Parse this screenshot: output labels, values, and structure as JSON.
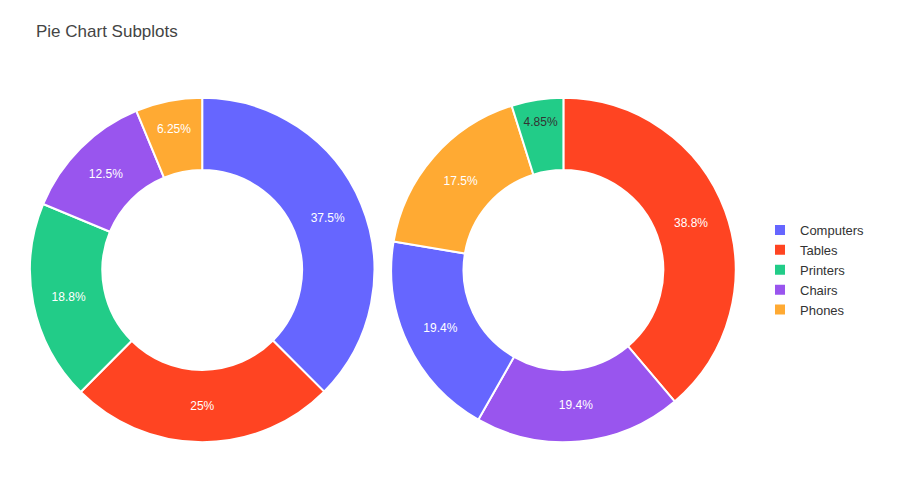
{
  "chart_data": [
    {
      "type": "pie",
      "title": "Pie Chart Subplots",
      "legend": "right",
      "categories": [
        "Computers",
        "Tables",
        "Printers",
        "Chairs",
        "Phones"
      ],
      "values": [
        37.5,
        25.0,
        18.8,
        12.5,
        6.25
      ],
      "value_labels": [
        "37.5%",
        "25%",
        "18.8%",
        "12.5%",
        "6.25%"
      ],
      "colors": [
        "#6666ff",
        "#ff4422",
        "#22cc88",
        "#9955ee",
        "#ffaa33"
      ],
      "data_labels": true
    },
    {
      "type": "pie",
      "legend": "right",
      "categories": [
        "Tables",
        "Chairs",
        "Computers",
        "Phones",
        "Printers"
      ],
      "values": [
        38.8,
        19.4,
        19.4,
        17.5,
        4.85
      ],
      "value_labels": [
        "38.8%",
        "19.4%",
        "19.4%",
        "17.5%",
        "4.85%"
      ],
      "colors": [
        "#ff4422",
        "#9955ee",
        "#6666ff",
        "#ffaa33",
        "#22cc88"
      ],
      "data_labels": true
    }
  ]
}
